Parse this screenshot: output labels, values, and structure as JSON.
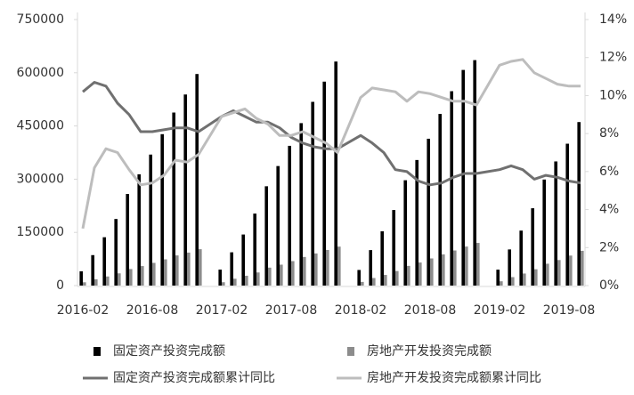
{
  "chart_data": {
    "type": "bar",
    "x": [
      "2016-02",
      "2016-03",
      "2016-04",
      "2016-05",
      "2016-06",
      "2016-07",
      "2016-08",
      "2016-09",
      "2016-10",
      "2016-11",
      "2016-12",
      "2017-02",
      "2017-03",
      "2017-04",
      "2017-05",
      "2017-06",
      "2017-07",
      "2017-08",
      "2017-09",
      "2017-10",
      "2017-11",
      "2017-12",
      "2018-02",
      "2018-03",
      "2018-04",
      "2018-05",
      "2018-06",
      "2018-07",
      "2018-08",
      "2018-09",
      "2018-10",
      "2018-11",
      "2018-12",
      "2019-02",
      "2019-03",
      "2019-04",
      "2019-05",
      "2019-06",
      "2019-07",
      "2019-08",
      "2019-09"
    ],
    "xticks": [
      "2016-02",
      "2016-08",
      "2017-02",
      "2017-08",
      "2018-02",
      "2018-08",
      "2019-02",
      "2019-08"
    ],
    "ylim": [
      0,
      750000
    ],
    "yticks": [
      0,
      150000,
      300000,
      450000,
      600000,
      750000
    ],
    "y2lim": [
      0,
      14
    ],
    "y2ticks": [
      {
        "value": 0,
        "label": "0%"
      },
      {
        "value": 2,
        "label": "2%"
      },
      {
        "value": 4,
        "label": "4%"
      },
      {
        "value": 6,
        "label": "6%"
      },
      {
        "value": 8,
        "label": "8%"
      },
      {
        "value": 10,
        "label": "10%"
      },
      {
        "value": 12,
        "label": "12%"
      },
      {
        "value": 14,
        "label": "14%"
      }
    ],
    "legend": "bottom",
    "series": [
      {
        "name": "固定资产投资完成额",
        "type": "bar",
        "color": "#000000",
        "values": [
          40214,
          85845,
          136292,
          187671,
          258360,
          313817,
          369319,
          426906,
          487828,
          538734,
          596501,
          45000,
          93777,
          144000,
          203000,
          280000,
          337000,
          394000,
          458000,
          518000,
          575000,
          631684,
          44000,
          100000,
          153000,
          213000,
          297000,
          354000,
          414000,
          484000,
          548000,
          608000,
          635636,
          44849,
          101871,
          155000,
          218000,
          299000,
          350000,
          400000,
          461000
        ]
      },
      {
        "name": "房地产开发投资完成额",
        "type": "bar",
        "color": "#8c8c8c",
        "values": [
          9313,
          17677,
          25650,
          34500,
          46631,
          55000,
          64000,
          74000,
          85000,
          93000,
          102581,
          9478,
          19292,
          27732,
          37000,
          50610,
          59000,
          69000,
          80644,
          90544,
          100387,
          109799,
          10357,
          21291,
          30000,
          41000,
          55531,
          65000,
          76519,
          88000,
          99000,
          110000,
          120264,
          12090,
          23803,
          34000,
          46000,
          61609,
          72000,
          84589,
          98000
        ]
      },
      {
        "name": "固定资产投资完成额累计同比",
        "type": "line",
        "axis": "y2",
        "color": "#707070",
        "values": [
          10.2,
          10.7,
          10.5,
          9.6,
          9.0,
          8.1,
          8.1,
          8.2,
          8.3,
          8.3,
          8.1,
          8.9,
          9.2,
          8.9,
          8.6,
          8.6,
          8.3,
          7.8,
          7.5,
          7.3,
          7.2,
          7.2,
          7.9,
          7.5,
          7.0,
          6.1,
          6.0,
          5.5,
          5.3,
          5.4,
          5.7,
          5.9,
          5.9,
          6.1,
          6.3,
          6.1,
          5.6,
          5.8,
          5.7,
          5.5,
          5.4
        ]
      },
      {
        "name": "房地产开发投资完成额累计同比",
        "type": "line",
        "axis": "y2",
        "color": "#bdbdbd",
        "values": [
          3.0,
          6.2,
          7.2,
          7.0,
          6.1,
          5.3,
          5.4,
          5.8,
          6.6,
          6.5,
          6.9,
          8.9,
          9.1,
          9.3,
          8.8,
          8.5,
          7.9,
          7.9,
          8.1,
          7.8,
          7.5,
          7.0,
          9.9,
          10.4,
          10.3,
          10.2,
          9.7,
          10.2,
          10.1,
          9.9,
          9.7,
          9.7,
          9.5,
          11.6,
          11.8,
          11.9,
          11.2,
          10.9,
          10.6,
          10.5,
          10.5
        ]
      }
    ]
  }
}
